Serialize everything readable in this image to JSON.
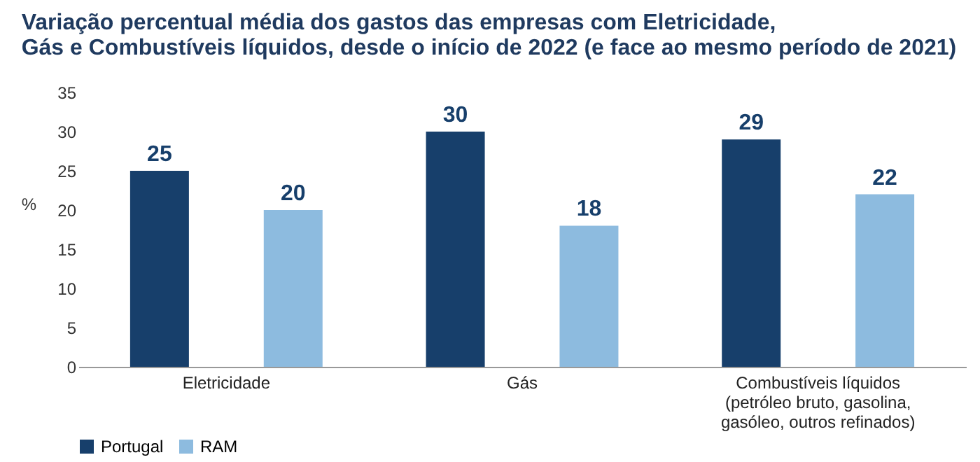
{
  "chart_data": {
    "type": "bar",
    "title": "Variação percentual média dos gastos das empresas com Eletricidade,\nGás e Combustíveis líquidos, desde o início de 2022 (e face ao mesmo período de 2021)",
    "ylabel": "%",
    "categories": [
      "Eletricidade",
      "Gás",
      "Combustíveis líquidos\n(petróleo bruto, gasolina,\ngasóleo, outros refinados)"
    ],
    "series": [
      {
        "name": "Portugal",
        "color": "#173f6b",
        "values": [
          25,
          30,
          29
        ]
      },
      {
        "name": "RAM",
        "color": "#8dbbdf",
        "values": [
          20,
          18,
          22
        ]
      }
    ],
    "ylim": [
      0,
      35
    ],
    "yticks": [
      0,
      5,
      10,
      15,
      20,
      25,
      30,
      35
    ],
    "grid": false,
    "legend": "bottom",
    "data_labels": true
  }
}
